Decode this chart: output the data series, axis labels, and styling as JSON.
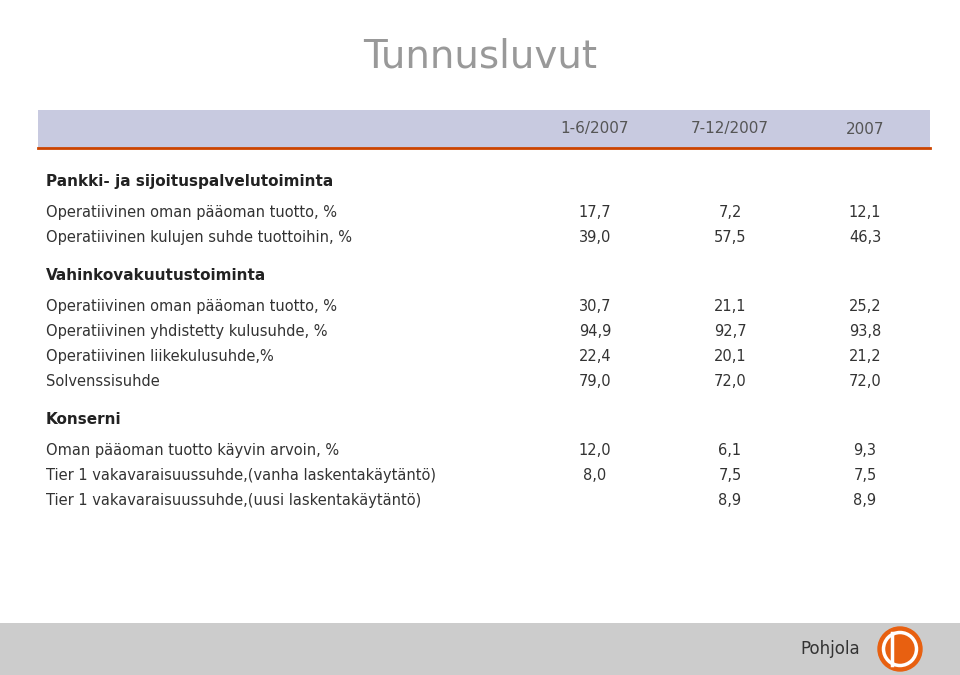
{
  "title": "Tunnusluvut",
  "title_color": "#999999",
  "background_color": "#ffffff",
  "header_bg": "#c8cae0",
  "header_line_color": "#cc4400",
  "columns": [
    "1-6/2007",
    "7-12/2007",
    "2007"
  ],
  "sections": [
    {
      "header": "Pankki- ja sijoituspalvelutoiminta",
      "rows": [
        {
          "label": "Operatiivinen oman pääoman tuotto, %",
          "values": [
            "17,7",
            "7,2",
            "12,1"
          ]
        },
        {
          "label": "Operatiivinen kulujen suhde tuottoihin, %",
          "values": [
            "39,0",
            "57,5",
            "46,3"
          ]
        }
      ]
    },
    {
      "header": "Vahinkovakuutustoiminta",
      "rows": [
        {
          "label": "Operatiivinen oman pääoman tuotto, %",
          "values": [
            "30,7",
            "21,1",
            "25,2"
          ]
        },
        {
          "label": "Operatiivinen yhdistetty kulusuhde, %",
          "values": [
            "94,9",
            "92,7",
            "93,8"
          ]
        },
        {
          "label": "Operatiivinen liikekulusuhde,%",
          "values": [
            "22,4",
            "20,1",
            "21,2"
          ]
        },
        {
          "label": "Solvenssisuhde",
          "values": [
            "79,0",
            "72,0",
            "72,0"
          ]
        }
      ]
    },
    {
      "header": "Konserni",
      "rows": [
        {
          "label": "Oman pääoman tuotto käyvin arvoin, %",
          "values": [
            "12,0",
            "6,1",
            "9,3"
          ]
        },
        {
          "label": "Tier 1 vakavaraisuussuhde,(vanha laskentakäytäntö)",
          "values": [
            "8,0",
            "7,5",
            "7,5"
          ]
        },
        {
          "label": "Tier 1 vakavaraisuussuhde,(uusi laskentakäytäntö)",
          "values": [
            "",
            "8,9",
            "8,9"
          ]
        }
      ]
    }
  ],
  "text_color": "#333333",
  "header_text_color": "#222222",
  "col_header_color": "#555555",
  "footer_bg": "#cccccc",
  "footer_text": "Pohjola",
  "orange_color": "#e86010",
  "fig_width": 9.6,
  "fig_height": 6.75,
  "dpi": 100
}
